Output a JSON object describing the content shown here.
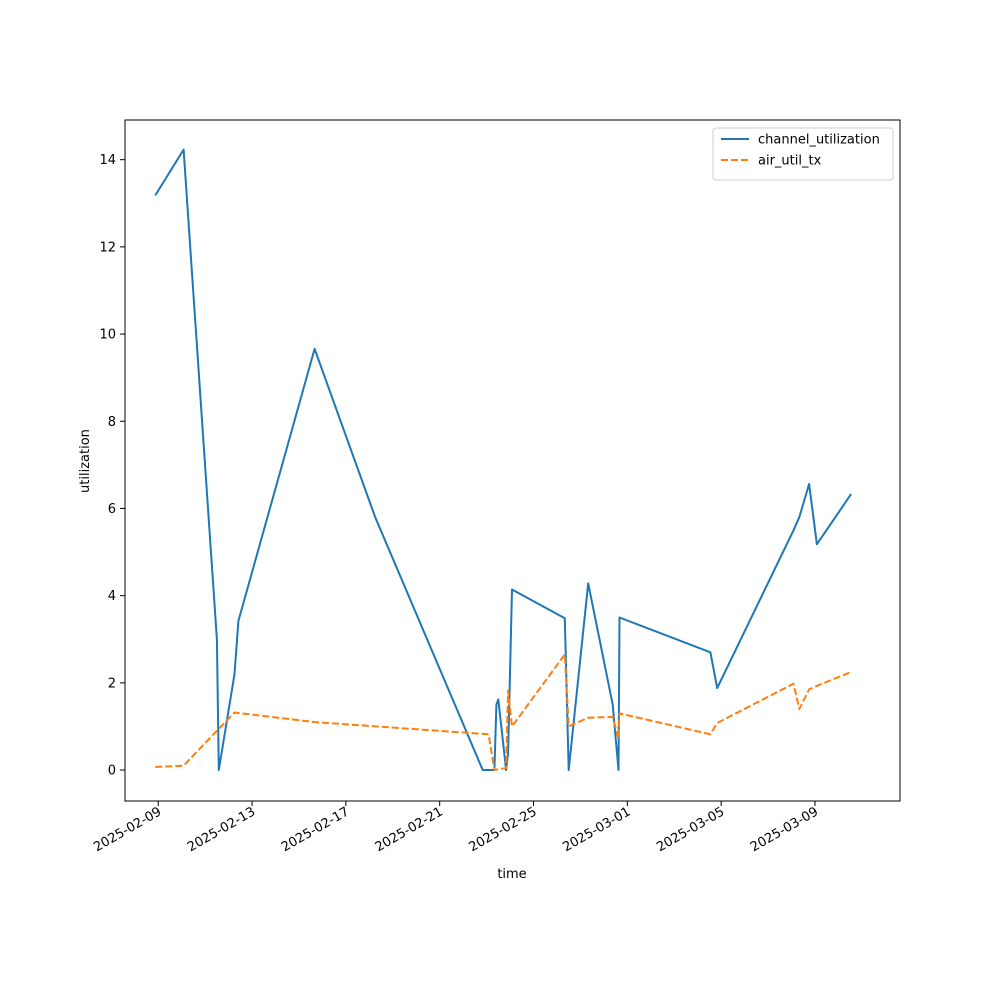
{
  "chart_data": {
    "type": "line",
    "xlabel": "time",
    "ylabel": "utilization",
    "x_ticks": [
      "2025-02-09",
      "2025-02-13",
      "2025-02-17",
      "2025-02-21",
      "2025-02-25",
      "2025-03-01",
      "2025-03-05",
      "2025-03-09"
    ],
    "y_ticks": [
      0,
      2,
      4,
      6,
      8,
      10,
      12,
      14
    ],
    "xlim": [
      "2025-02-07T14:00",
      "2025-03-12T15:00"
    ],
    "ylim": [
      -0.71,
      14.91
    ],
    "grid": false,
    "legend_position": "top-right",
    "series": [
      {
        "name": "channel_utilization",
        "color": "#1f77b4",
        "style": "solid",
        "points": [
          [
            "2025-02-08T21:00",
            13.18
          ],
          [
            "2025-02-10T02:00",
            14.23
          ],
          [
            "2025-02-11T12:00",
            3.0
          ],
          [
            "2025-02-11T14:00",
            0.0
          ],
          [
            "2025-02-12T06:00",
            2.2
          ],
          [
            "2025-02-12T10:00",
            3.42
          ],
          [
            "2025-02-15T16:00",
            9.66
          ],
          [
            "2025-02-18T06:00",
            5.8
          ],
          [
            "2025-02-22T20:00",
            0.0
          ],
          [
            "2025-02-23T08:00",
            0.0
          ],
          [
            "2025-02-23T10:00",
            1.5
          ],
          [
            "2025-02-23T12:00",
            1.62
          ],
          [
            "2025-02-23T20:00",
            0.0
          ],
          [
            "2025-02-23T22:00",
            0.4
          ],
          [
            "2025-02-24T02:00",
            4.14
          ],
          [
            "2025-02-26T08:00",
            3.48
          ],
          [
            "2025-02-26T12:00",
            0.0
          ],
          [
            "2025-02-27T08:00",
            4.28
          ],
          [
            "2025-02-28T09:00",
            1.5
          ],
          [
            "2025-02-28T15:00",
            0.0
          ],
          [
            "2025-02-28T16:00",
            3.5
          ],
          [
            "2025-03-04T13:00",
            2.7
          ],
          [
            "2025-03-04T20:00",
            1.88
          ],
          [
            "2025-03-08T02:00",
            5.5
          ],
          [
            "2025-03-08T08:00",
            5.8
          ],
          [
            "2025-03-08T18:00",
            6.56
          ],
          [
            "2025-03-09T02:00",
            5.18
          ],
          [
            "2025-03-10T13:00",
            6.33
          ]
        ]
      },
      {
        "name": "air_util_tx",
        "color": "#ff7f0e",
        "style": "dashed",
        "points": [
          [
            "2025-02-08T21:00",
            0.07
          ],
          [
            "2025-02-10T02:00",
            0.1
          ],
          [
            "2025-02-11T12:00",
            0.9
          ],
          [
            "2025-02-12T06:00",
            1.32
          ],
          [
            "2025-02-15T16:00",
            1.1
          ],
          [
            "2025-02-23T02:00",
            0.82
          ],
          [
            "2025-02-23T08:00",
            0.0
          ],
          [
            "2025-02-23T20:00",
            0.05
          ],
          [
            "2025-02-23T22:00",
            1.82
          ],
          [
            "2025-02-24T02:00",
            1.0
          ],
          [
            "2025-02-26T08:00",
            2.65
          ],
          [
            "2025-02-26T12:00",
            1.0
          ],
          [
            "2025-02-27T08:00",
            1.2
          ],
          [
            "2025-02-28T09:00",
            1.22
          ],
          [
            "2025-02-28T15:00",
            0.72
          ],
          [
            "2025-02-28T16:00",
            1.3
          ],
          [
            "2025-03-04T13:00",
            0.82
          ],
          [
            "2025-03-04T20:00",
            1.08
          ],
          [
            "2025-03-08T02:00",
            1.98
          ],
          [
            "2025-03-08T08:00",
            1.4
          ],
          [
            "2025-03-08T18:00",
            1.85
          ],
          [
            "2025-03-09T02:00",
            1.93
          ],
          [
            "2025-03-10T13:00",
            2.25
          ]
        ]
      }
    ]
  }
}
